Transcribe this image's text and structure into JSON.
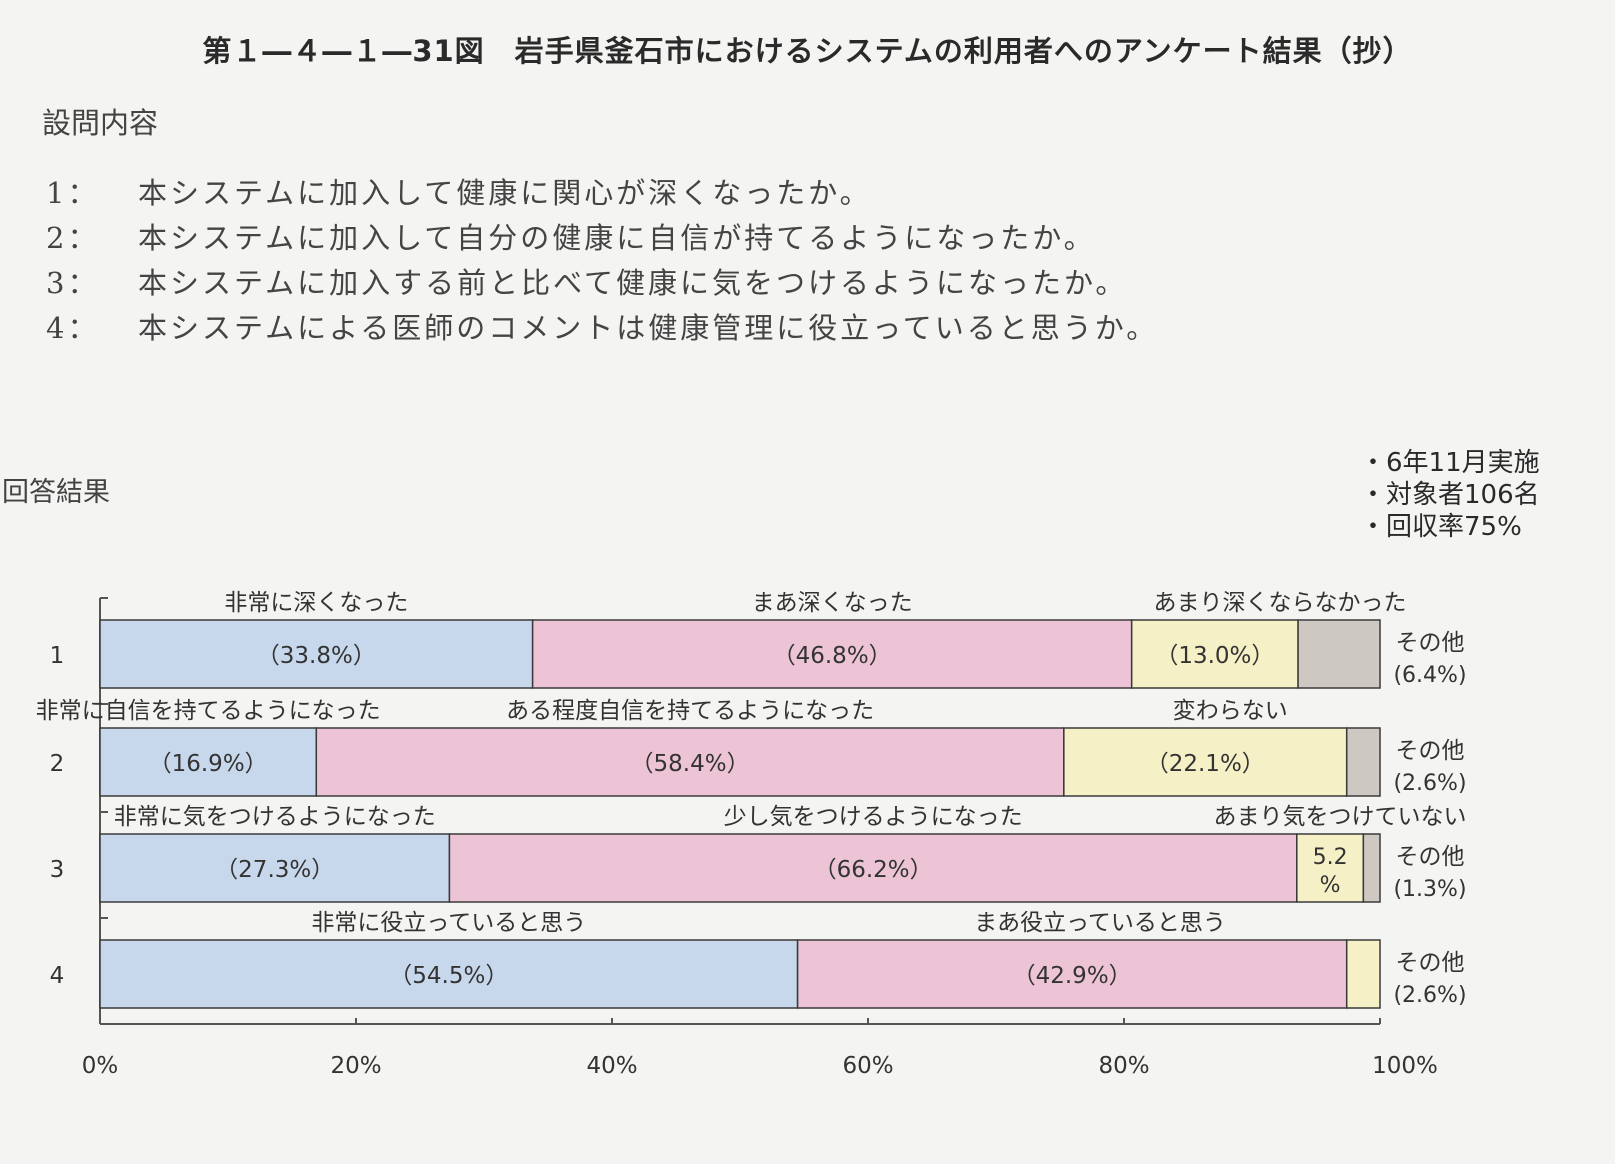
{
  "title": "第１―４―１―31図　岩手県釜石市におけるシステムの利用者へのアンケート結果（抄）",
  "questions_heading": "設問内容",
  "questions": [
    {
      "num": "1：",
      "text": "本システムに加入して健康に関心が深くなったか。"
    },
    {
      "num": "2：",
      "text": "本システムに加入して自分の健康に自信が持てるようになったか。"
    },
    {
      "num": "3：",
      "text": "本システムに加入する前と比べて健康に気をつけるようになったか。"
    },
    {
      "num": "4：",
      "text": "本システムによる医師のコメントは健康管理に役立っていると思うか。"
    }
  ],
  "results_heading": "回答結果",
  "notes": [
    "・6年11月実施",
    "・対象者106名",
    "・回収率75%"
  ],
  "colors": {
    "very": "#c8d8ec",
    "somewhat": "#ecc4d6",
    "little": "#f6f0c6",
    "other": "#cdc8c2"
  },
  "chart_data": {
    "type": "bar",
    "orientation": "horizontal",
    "stacked": true,
    "xlim": [
      0,
      100
    ],
    "x_ticks": [
      "0%",
      "20%",
      "40%",
      "60%",
      "80%",
      "100%"
    ],
    "rows": [
      {
        "label": "1",
        "segments": [
          {
            "name": "非常に深くなった",
            "value": 33.8,
            "label": "（33.8%）",
            "color_key": "very"
          },
          {
            "name": "まあ深くなった",
            "value": 46.8,
            "label": "（46.8%）",
            "color_key": "somewhat"
          },
          {
            "name": "あまり深くならなかった",
            "value": 13.0,
            "label": "（13.0%）",
            "color_key": "little"
          },
          {
            "name": "その他",
            "value": 6.4,
            "label": "",
            "color_key": "other"
          }
        ],
        "other_label": [
          "その他",
          "(6.4%)"
        ]
      },
      {
        "label": "2",
        "segments": [
          {
            "name": "非常に自信を持てるようになった",
            "value": 16.9,
            "label": "（16.9%）",
            "color_key": "very"
          },
          {
            "name": "ある程度自信を持てるようになった",
            "value": 58.4,
            "label": "（58.4%）",
            "color_key": "somewhat"
          },
          {
            "name": "変わらない",
            "value": 22.1,
            "label": "（22.1%）",
            "color_key": "little"
          },
          {
            "name": "その他",
            "value": 2.6,
            "label": "",
            "color_key": "other"
          }
        ],
        "other_label": [
          "その他",
          "(2.6%)"
        ]
      },
      {
        "label": "3",
        "segments": [
          {
            "name": "非常に気をつけるようになった",
            "value": 27.3,
            "label": "（27.3%）",
            "color_key": "very"
          },
          {
            "name": "少し気をつけるようになった",
            "value": 66.2,
            "label": "（66.2%）",
            "color_key": "somewhat"
          },
          {
            "name": "あまり気をつけていない",
            "value": 5.2,
            "label": "5.2\n%",
            "color_key": "little"
          },
          {
            "name": "その他",
            "value": 1.3,
            "label": "",
            "color_key": "other"
          }
        ],
        "other_label": [
          "その他",
          "(1.3%)"
        ]
      },
      {
        "label": "4",
        "segments": [
          {
            "name": "非常に役立っていると思う",
            "value": 54.5,
            "label": "（54.5%）",
            "color_key": "very"
          },
          {
            "name": "まあ役立っていると思う",
            "value": 42.9,
            "label": "（42.9%）",
            "color_key": "somewhat"
          },
          {
            "name": "その他",
            "value": 2.6,
            "label": "",
            "color_key": "little"
          }
        ],
        "other_label": [
          "その他",
          "(2.6%)"
        ]
      }
    ]
  }
}
